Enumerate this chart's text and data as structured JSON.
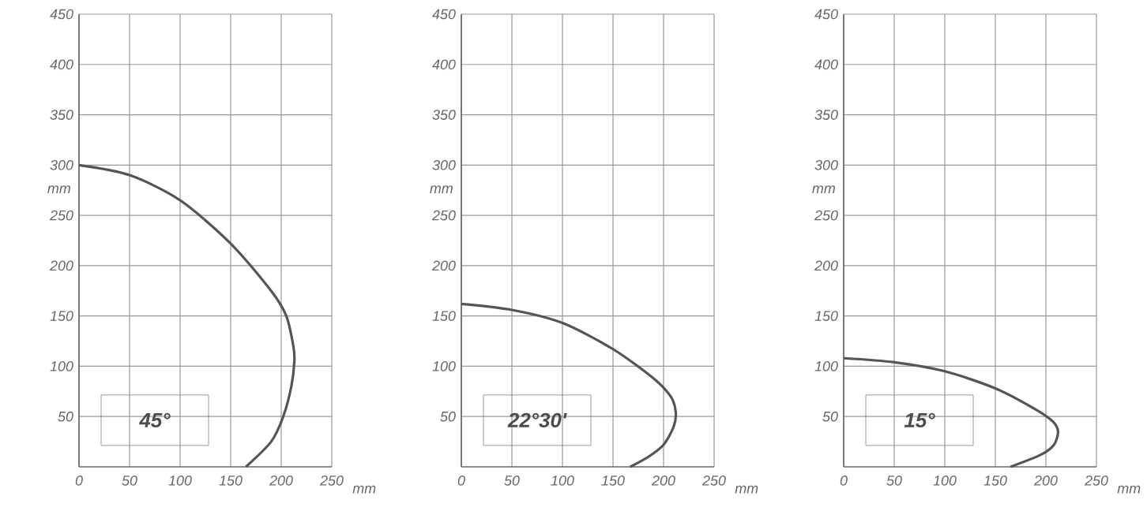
{
  "chart_data": [
    {
      "type": "line",
      "xlim": [
        0,
        250
      ],
      "ylim": [
        0,
        450
      ],
      "xticks": [
        0,
        50,
        100,
        150,
        200,
        250
      ],
      "yticks": [
        50,
        100,
        150,
        200,
        250,
        300,
        350,
        400,
        450
      ],
      "xlabel": "mm",
      "ylabel": "mm",
      "grid": true,
      "annotations": [
        "45°"
      ],
      "series": [
        {
          "color": "#555555",
          "x": [
            0,
            50,
            100,
            150,
            190,
            205,
            212,
            213,
            210,
            202,
            190,
            165
          ],
          "values": [
            300,
            290,
            265,
            222,
            175,
            150,
            120,
            105,
            80,
            50,
            25,
            0
          ]
        }
      ]
    },
    {
      "type": "line",
      "xlim": [
        0,
        250
      ],
      "ylim": [
        0,
        450
      ],
      "xticks": [
        0,
        50,
        100,
        150,
        200,
        250
      ],
      "yticks": [
        50,
        100,
        150,
        200,
        250,
        300,
        350,
        400,
        450
      ],
      "xlabel": "mm",
      "ylabel": "mm",
      "grid": true,
      "annotations": [
        "22°30'"
      ],
      "series": [
        {
          "color": "#555555",
          "x": [
            0,
            50,
            100,
            150,
            190,
            207,
            212,
            210,
            200,
            185,
            167
          ],
          "values": [
            162,
            156,
            143,
            117,
            88,
            70,
            55,
            40,
            22,
            10,
            0
          ]
        }
      ]
    },
    {
      "type": "line",
      "xlim": [
        0,
        250
      ],
      "ylim": [
        0,
        450
      ],
      "xticks": [
        0,
        50,
        100,
        150,
        200,
        250
      ],
      "yticks": [
        50,
        100,
        150,
        200,
        250,
        300,
        350,
        400,
        450
      ],
      "xlabel": "mm",
      "ylabel": "mm",
      "grid": true,
      "annotations": [
        "15°"
      ],
      "series": [
        {
          "color": "#555555",
          "x": [
            0,
            50,
            100,
            150,
            190,
            207,
            212,
            208,
            195,
            165
          ],
          "values": [
            108,
            104,
            95,
            78,
            57,
            45,
            35,
            22,
            12,
            0
          ]
        }
      ]
    }
  ]
}
